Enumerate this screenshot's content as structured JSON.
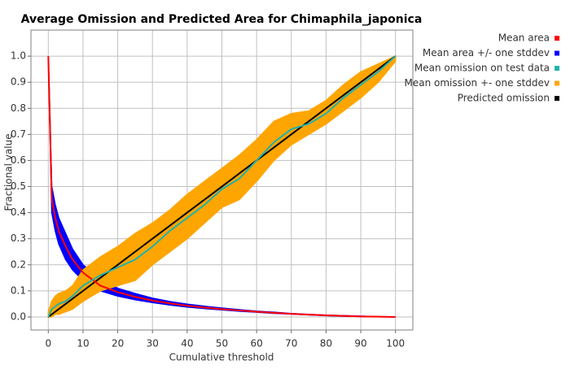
{
  "chart_data": {
    "type": "line",
    "title": "Average Omission and Predicted Area for Chimaphila_japonica",
    "x_label": "Cumulative threshold",
    "y_label": "Fractional value",
    "x": [
      0,
      1,
      2,
      3,
      5,
      7,
      10,
      15,
      20,
      25,
      30,
      35,
      40,
      45,
      50,
      55,
      60,
      65,
      70,
      75,
      80,
      85,
      90,
      95,
      100
    ],
    "series": [
      {
        "name": "Mean area +/- one stddev",
        "color": "#0000ff",
        "style": "band",
        "lower": [
          1.0,
          0.4,
          0.33,
          0.28,
          0.22,
          0.18,
          0.14,
          0.1,
          0.08,
          0.066,
          0.055,
          0.046,
          0.038,
          0.032,
          0.027,
          0.022,
          0.018,
          0.014,
          0.011,
          0.008,
          0.005,
          0.003,
          0.002,
          0.001,
          0
        ],
        "upper": [
          1.0,
          0.5,
          0.43,
          0.38,
          0.32,
          0.26,
          0.2,
          0.145,
          0.11,
          0.09,
          0.072,
          0.059,
          0.049,
          0.041,
          0.034,
          0.028,
          0.022,
          0.018,
          0.013,
          0.01,
          0.007,
          0.005,
          0.003,
          0.001,
          0
        ]
      },
      {
        "name": "Mean omission +- one stddev",
        "color": "#ffa500",
        "style": "band",
        "lower": [
          0,
          0.0,
          0.01,
          0.01,
          0.02,
          0.03,
          0.06,
          0.1,
          0.12,
          0.14,
          0.2,
          0.25,
          0.3,
          0.36,
          0.42,
          0.45,
          0.52,
          0.6,
          0.66,
          0.7,
          0.74,
          0.79,
          0.84,
          0.9,
          0.98
        ],
        "upper": [
          0.02,
          0.06,
          0.08,
          0.09,
          0.1,
          0.12,
          0.18,
          0.23,
          0.27,
          0.32,
          0.36,
          0.41,
          0.47,
          0.52,
          0.57,
          0.62,
          0.68,
          0.75,
          0.78,
          0.79,
          0.83,
          0.89,
          0.94,
          0.97,
          1.0
        ]
      },
      {
        "name": "Predicted omission",
        "color": "#000000",
        "style": "line",
        "values": [
          0,
          0.01,
          0.02,
          0.03,
          0.05,
          0.07,
          0.1,
          0.15,
          0.2,
          0.25,
          0.3,
          0.35,
          0.4,
          0.45,
          0.5,
          0.55,
          0.6,
          0.65,
          0.7,
          0.75,
          0.8,
          0.85,
          0.9,
          0.95,
          1.0
        ]
      },
      {
        "name": "Mean area",
        "color": "#ff0000",
        "style": "line",
        "values": [
          1.0,
          0.45,
          0.38,
          0.33,
          0.27,
          0.22,
          0.17,
          0.12,
          0.095,
          0.077,
          0.063,
          0.052,
          0.043,
          0.036,
          0.03,
          0.025,
          0.02,
          0.016,
          0.012,
          0.009,
          0.006,
          0.004,
          0.002,
          0.001,
          0
        ]
      },
      {
        "name": "Mean omission on test data",
        "color": "#20b2aa",
        "style": "line",
        "values": [
          0.0,
          0.03,
          0.04,
          0.05,
          0.06,
          0.08,
          0.12,
          0.16,
          0.19,
          0.22,
          0.27,
          0.33,
          0.38,
          0.43,
          0.49,
          0.53,
          0.6,
          0.67,
          0.72,
          0.74,
          0.78,
          0.84,
          0.89,
          0.94,
          1.0
        ]
      }
    ],
    "legend_order": [
      3,
      0,
      4,
      1,
      2
    ],
    "xlim": [
      -5,
      105
    ],
    "ylim": [
      -0.05,
      1.1
    ],
    "xticks": [
      0,
      10,
      20,
      30,
      40,
      50,
      60,
      70,
      80,
      90,
      100
    ],
    "yticks": [
      {
        "value": 0,
        "label": "0.0"
      },
      0.1,
      0.2,
      0.3,
      0.4,
      0.5,
      0.6,
      0.7,
      0.8,
      0.9,
      {
        "value": 1,
        "label": "1.0"
      }
    ],
    "grid": true,
    "legend": "right"
  }
}
